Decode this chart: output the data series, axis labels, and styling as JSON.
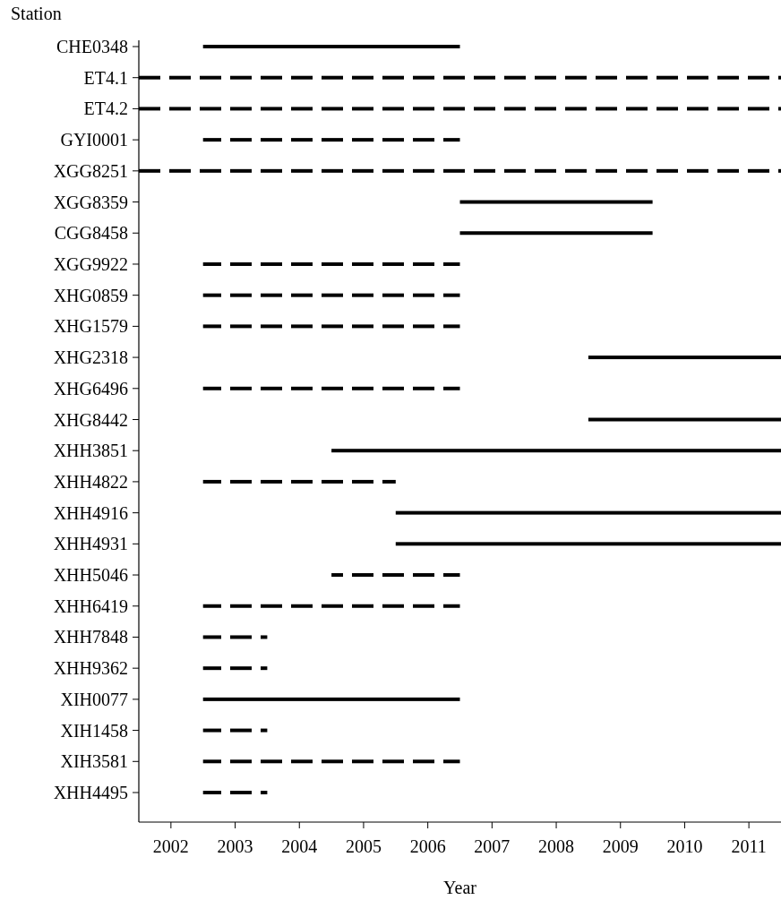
{
  "chart_data": {
    "type": "bar",
    "orientation": "horizontal",
    "xlabel": "Year",
    "ylabel": "Station",
    "categories": [
      "CHE0348",
      "ET4.1",
      "ET4.2",
      "GYI0001",
      "XGG8251",
      "XGG8359",
      "CGG8458",
      "XGG9922",
      "XHG0859",
      "XHG1579",
      "XHG2318",
      "XHG6496",
      "XHG8442",
      "XHH3851",
      "XHH4822",
      "XHH4916",
      "XHH4931",
      "XHH5046",
      "XHH6419",
      "XHH7848",
      "XHH9362",
      "XIH0077",
      "XIH1458",
      "XIH3581",
      "XHH4495"
    ],
    "series": [
      {
        "color": "#000000",
        "line_style": "solid",
        "base": [
          2002.5,
          null,
          null,
          null,
          null,
          2006.5,
          2006.5,
          null,
          null,
          null,
          2008.5,
          null,
          2008.5,
          2004.5,
          null,
          2005.5,
          2005.5,
          null,
          null,
          null,
          null,
          2002.5,
          null,
          null,
          null
        ],
        "values": [
          4,
          null,
          null,
          null,
          null,
          3,
          3,
          null,
          null,
          null,
          3,
          null,
          3,
          7,
          null,
          6,
          6,
          null,
          null,
          null,
          null,
          4,
          null,
          null,
          null
        ]
      },
      {
        "color": "#000000",
        "line_style": "dashed",
        "base": [
          null,
          2001.5,
          2001.5,
          2002.5,
          2001.5,
          null,
          null,
          2002.5,
          2002.5,
          2002.5,
          null,
          2002.5,
          null,
          null,
          2002.5,
          null,
          null,
          2004.5,
          2002.5,
          2002.5,
          2002.5,
          null,
          2002.5,
          2002.5,
          2002.5
        ],
        "values": [
          null,
          10,
          10,
          4,
          10,
          null,
          null,
          4,
          4,
          4,
          null,
          4,
          null,
          null,
          3,
          null,
          null,
          2,
          4,
          1,
          1,
          null,
          1,
          4,
          1
        ]
      }
    ],
    "xlim": [
      2001.5,
      2011.5
    ],
    "xticks": [
      2002,
      2003,
      2004,
      2005,
      2006,
      2007,
      2008,
      2009,
      2010,
      2011
    ],
    "grid": false
  }
}
